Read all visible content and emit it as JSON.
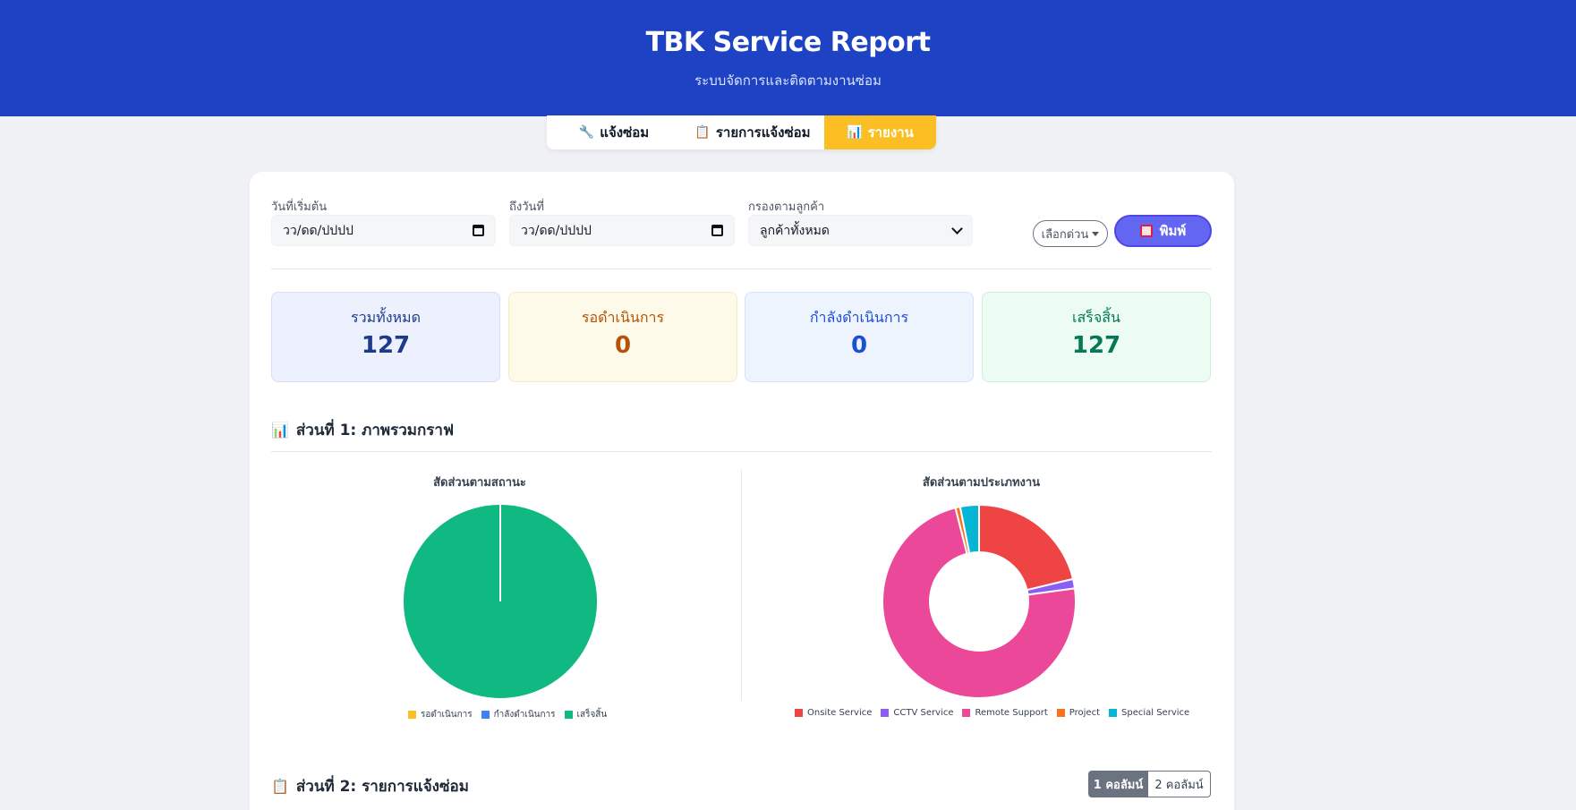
{
  "header": {
    "title": "TBK Service Report",
    "subtitle": "ระบบจัดการและติดตามงานซ่อม"
  },
  "tabs": [
    {
      "label": "แจ้งซ่อม",
      "icon": "wrench-icon",
      "active": false
    },
    {
      "label": "รายการแจ้งซ่อม",
      "icon": "clipboard-icon",
      "active": false
    },
    {
      "label": "รายงาน",
      "icon": "bar-chart-icon",
      "active": true
    }
  ],
  "filters": {
    "start_label": "วันที่เริ่มต้น",
    "start_value": "วว/ดด/ปปปป",
    "end_label": "ถึงวันที่",
    "end_value": "วว/ดด/ปปปป",
    "customer_label": "กรองตามลูกค้า",
    "customer_value": "ลูกค้าทั้งหมด",
    "quick_label": "เลือกด่วน",
    "print_label": "พิมพ์"
  },
  "stats": [
    {
      "label": "รวมทั้งหมด",
      "value": "127"
    },
    {
      "label": "รอดำเนินการ",
      "value": "0"
    },
    {
      "label": "กำลังดำเนินการ",
      "value": "0"
    },
    {
      "label": "เสร็จสิ้น",
      "value": "127"
    }
  ],
  "sections": {
    "charts_title": "ส่วนที่ 1: ภาพรวมกราฟ",
    "list_title": "ส่วนที่ 2: รายการแจ้งซ่อม"
  },
  "columns_toggle": {
    "one": "1 คอลัมน์",
    "two": "2 คอลัมน์",
    "active": "one"
  },
  "colors": {
    "header": "#1d43c4",
    "active_tab": "#fbbf24",
    "print_button": "#6366f1"
  },
  "chart_data": [
    {
      "type": "pie",
      "title": "สัดส่วนตามสถานะ",
      "categories": [
        "รอดำเนินการ",
        "กำลังดำเนินการ",
        "เสร็จสิ้น"
      ],
      "values": [
        0,
        0,
        127
      ],
      "colors": [
        "#fbbf24",
        "#3b82f6",
        "#10b981"
      ],
      "legend": "bottom"
    },
    {
      "type": "pie",
      "title": "สัดส่วนตามประเภทงาน",
      "categories": [
        "Onsite Service",
        "CCTV Service",
        "Remote Support",
        "Project",
        "Special Service"
      ],
      "values": [
        27,
        2,
        93,
        1,
        4
      ],
      "colors": [
        "#ef4444",
        "#8b5cf6",
        "#ec4899",
        "#f97316",
        "#06b6d4"
      ],
      "legend": "bottom",
      "donut": true
    }
  ]
}
